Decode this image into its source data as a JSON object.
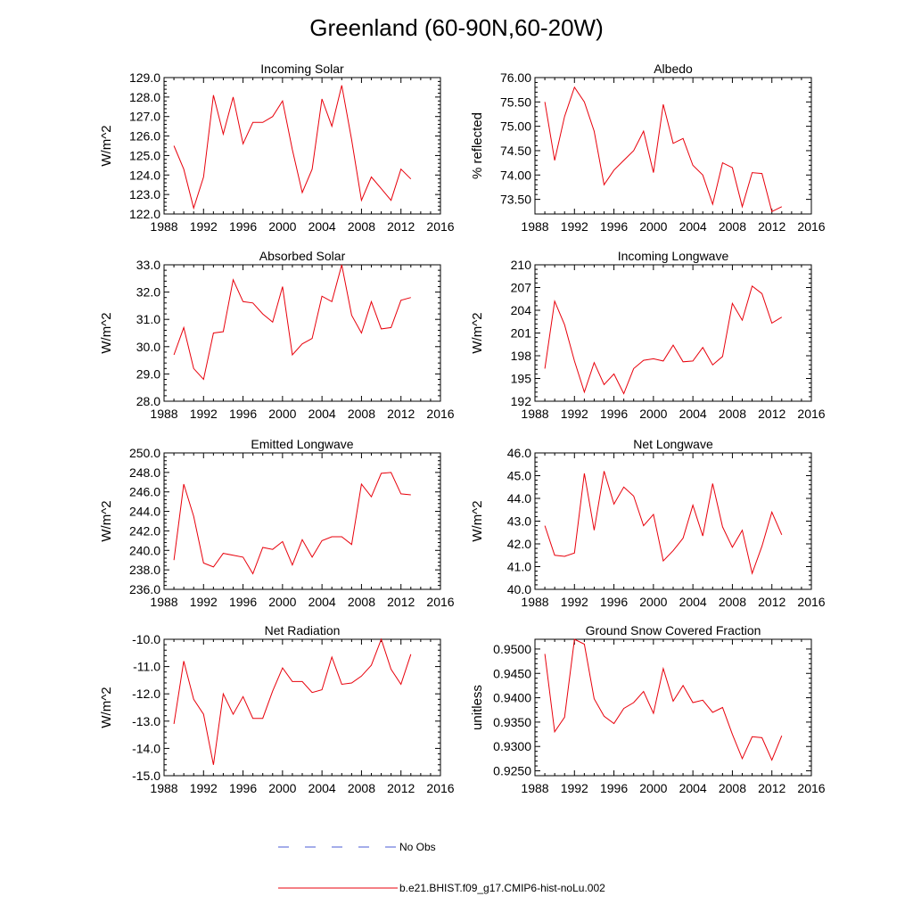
{
  "title": "Greenland (60-90N,60-20W)",
  "legend": {
    "items": [
      {
        "label": "No Obs",
        "color": "#4a5bd4",
        "dash": "12 18"
      },
      {
        "label": "b.e21.BHIST.f09_g17.CMIP6-hist-noLu.002",
        "color": "#e8000b",
        "dash": ""
      }
    ]
  },
  "chart_data": [
    {
      "type": "line",
      "title": "Incoming Solar",
      "ylabel": "W/m^2",
      "xlim": [
        1988,
        2016
      ],
      "xticks": [
        "1988",
        "1992",
        "1996",
        "2000",
        "2004",
        "2008",
        "2012",
        "2016"
      ],
      "ylim": [
        122.0,
        129.0
      ],
      "yticks": [
        "122.0",
        "123.0",
        "124.0",
        "125.0",
        "126.0",
        "127.0",
        "128.0",
        "129.0"
      ],
      "x": [
        1989,
        1990,
        1991,
        1992,
        1993,
        1994,
        1995,
        1996,
        1997,
        1998,
        1999,
        2000,
        2001,
        2002,
        2003,
        2004,
        2005,
        2006,
        2007,
        2008,
        2009,
        2010,
        2011,
        2012,
        2013
      ],
      "series": [
        {
          "color": "#e8000b",
          "values": [
            125.5,
            124.3,
            122.3,
            123.9,
            128.1,
            126.1,
            128.0,
            125.6,
            126.7,
            126.7,
            127.0,
            127.8,
            125.3,
            123.1,
            124.3,
            127.9,
            126.5,
            128.6,
            125.8,
            122.7,
            123.9,
            123.3,
            122.7,
            124.3,
            123.8
          ]
        }
      ]
    },
    {
      "type": "line",
      "title": "Albedo",
      "ylabel": "% reflected",
      "xlim": [
        1988,
        2016
      ],
      "xticks": [
        "1988",
        "1992",
        "1996",
        "2000",
        "2004",
        "2008",
        "2012",
        "2016"
      ],
      "ylim": [
        73.2,
        76.0
      ],
      "yticks": [
        "73.50",
        "74.00",
        "74.50",
        "75.00",
        "75.50",
        "76.00"
      ],
      "ytickvals": [
        73.5,
        74.0,
        74.5,
        75.0,
        75.5,
        76.0
      ],
      "x": [
        1989,
        1990,
        1991,
        1992,
        1993,
        1994,
        1995,
        1996,
        1997,
        1998,
        1999,
        2000,
        2001,
        2002,
        2003,
        2004,
        2005,
        2006,
        2007,
        2008,
        2009,
        2010,
        2011,
        2012,
        2013
      ],
      "series": [
        {
          "color": "#e8000b",
          "values": [
            75.5,
            74.3,
            75.2,
            75.8,
            75.5,
            74.9,
            73.8,
            74.1,
            74.3,
            74.5,
            74.9,
            74.05,
            75.45,
            74.65,
            74.75,
            74.2,
            74.0,
            73.4,
            74.25,
            74.15,
            73.35,
            74.05,
            74.03,
            73.25,
            73.35
          ]
        }
      ]
    },
    {
      "type": "line",
      "title": "Absorbed Solar",
      "ylabel": "W/m^2",
      "xlim": [
        1988,
        2016
      ],
      "xticks": [
        "1988",
        "1992",
        "1996",
        "2000",
        "2004",
        "2008",
        "2012",
        "2016"
      ],
      "ylim": [
        28.0,
        33.0
      ],
      "yticks": [
        "28.0",
        "29.0",
        "30.0",
        "31.0",
        "32.0",
        "33.0"
      ],
      "x": [
        1989,
        1990,
        1991,
        1992,
        1993,
        1994,
        1995,
        1996,
        1997,
        1998,
        1999,
        2000,
        2001,
        2002,
        2003,
        2004,
        2005,
        2006,
        2007,
        2008,
        2009,
        2010,
        2011,
        2012,
        2013
      ],
      "series": [
        {
          "color": "#e8000b",
          "values": [
            29.7,
            30.7,
            29.2,
            28.8,
            30.5,
            30.55,
            32.45,
            31.65,
            31.6,
            31.2,
            30.9,
            32.2,
            29.7,
            30.1,
            30.3,
            31.85,
            31.65,
            33.0,
            31.15,
            30.5,
            31.65,
            30.65,
            30.7,
            31.7,
            31.8
          ]
        }
      ]
    },
    {
      "type": "line",
      "title": "Incoming Longwave",
      "ylabel": "W/m^2",
      "xlim": [
        1988,
        2016
      ],
      "xticks": [
        "1988",
        "1992",
        "1996",
        "2000",
        "2004",
        "2008",
        "2012",
        "2016"
      ],
      "ylim": [
        192,
        210
      ],
      "yticks": [
        "192",
        "195",
        "198",
        "201",
        "204",
        "207",
        "210"
      ],
      "x": [
        1989,
        1990,
        1991,
        1992,
        1993,
        1994,
        1995,
        1996,
        1997,
        1998,
        1999,
        2000,
        2001,
        2002,
        2003,
        2004,
        2005,
        2006,
        2007,
        2008,
        2009,
        2010,
        2011,
        2012,
        2013
      ],
      "series": [
        {
          "color": "#e8000b",
          "values": [
            196.3,
            205.2,
            202.1,
            197.3,
            193.2,
            197.1,
            194.2,
            195.6,
            193.0,
            196.3,
            197.4,
            197.6,
            197.3,
            199.4,
            197.2,
            197.3,
            199.1,
            196.8,
            197.9,
            204.9,
            202.7,
            207.2,
            206.2,
            202.3,
            203.1
          ]
        }
      ]
    },
    {
      "type": "line",
      "title": "Emitted Longwave",
      "ylabel": "W/m^2",
      "xlim": [
        1988,
        2016
      ],
      "xticks": [
        "1988",
        "1992",
        "1996",
        "2000",
        "2004",
        "2008",
        "2012",
        "2016"
      ],
      "ylim": [
        236.0,
        250.0
      ],
      "yticks": [
        "236.0",
        "238.0",
        "240.0",
        "242.0",
        "244.0",
        "246.0",
        "248.0",
        "250.0"
      ],
      "x": [
        1989,
        1990,
        1991,
        1992,
        1993,
        1994,
        1995,
        1996,
        1997,
        1998,
        1999,
        2000,
        2001,
        2002,
        2003,
        2004,
        2005,
        2006,
        2007,
        2008,
        2009,
        2010,
        2011,
        2012,
        2013
      ],
      "series": [
        {
          "color": "#e8000b",
          "values": [
            239.0,
            246.8,
            243.5,
            238.7,
            238.3,
            239.7,
            239.5,
            239.3,
            237.6,
            240.3,
            240.1,
            240.9,
            238.5,
            241.1,
            239.3,
            241.0,
            241.4,
            241.4,
            240.6,
            246.8,
            245.5,
            247.9,
            248.0,
            245.8,
            245.7
          ]
        }
      ]
    },
    {
      "type": "line",
      "title": "Net Longwave",
      "ylabel": "W/m^2",
      "xlim": [
        1988,
        2016
      ],
      "xticks": [
        "1988",
        "1992",
        "1996",
        "2000",
        "2004",
        "2008",
        "2012",
        "2016"
      ],
      "ylim": [
        40.0,
        46.0
      ],
      "yticks": [
        "40.0",
        "41.0",
        "42.0",
        "43.0",
        "44.0",
        "45.0",
        "46.0"
      ],
      "x": [
        1989,
        1990,
        1991,
        1992,
        1993,
        1994,
        1995,
        1996,
        1997,
        1998,
        1999,
        2000,
        2001,
        2002,
        2003,
        2004,
        2005,
        2006,
        2007,
        2008,
        2009,
        2010,
        2011,
        2012,
        2013
      ],
      "series": [
        {
          "color": "#e8000b",
          "values": [
            42.8,
            41.5,
            41.45,
            41.6,
            45.1,
            42.6,
            45.2,
            43.75,
            44.5,
            44.1,
            42.8,
            43.3,
            41.25,
            41.7,
            42.25,
            43.7,
            42.35,
            44.65,
            42.75,
            41.85,
            42.6,
            40.7,
            41.9,
            43.4,
            42.4
          ]
        }
      ]
    },
    {
      "type": "line",
      "title": "Net Radiation",
      "ylabel": "W/m^2",
      "xlim": [
        1988,
        2016
      ],
      "xticks": [
        "1988",
        "1992",
        "1996",
        "2000",
        "2004",
        "2008",
        "2012",
        "2016"
      ],
      "ylim": [
        -15.0,
        -10.0
      ],
      "yticks": [
        "-15.0",
        "-14.0",
        "-13.0",
        "-12.0",
        "-11.0",
        "-10.0"
      ],
      "x": [
        1989,
        1990,
        1991,
        1992,
        1993,
        1994,
        1995,
        1996,
        1997,
        1998,
        1999,
        2000,
        2001,
        2002,
        2003,
        2004,
        2005,
        2006,
        2007,
        2008,
        2009,
        2010,
        2011,
        2012,
        2013
      ],
      "series": [
        {
          "color": "#e8000b",
          "values": [
            -13.1,
            -10.8,
            -12.2,
            -12.75,
            -14.6,
            -12.0,
            -12.75,
            -12.1,
            -12.9,
            -12.9,
            -11.9,
            -11.05,
            -11.55,
            -11.55,
            -11.95,
            -11.85,
            -10.65,
            -11.65,
            -11.6,
            -11.35,
            -10.95,
            -10.0,
            -11.1,
            -11.65,
            -10.55
          ]
        }
      ]
    },
    {
      "type": "line",
      "title": "Ground Snow Covered Fraction",
      "ylabel": "unitless",
      "xlim": [
        1988,
        2016
      ],
      "xticks": [
        "1988",
        "1992",
        "1996",
        "2000",
        "2004",
        "2008",
        "2012",
        "2016"
      ],
      "ylim": [
        0.924,
        0.952
      ],
      "yticks": [
        "0.9250",
        "0.9300",
        "0.9350",
        "0.9400",
        "0.9450",
        "0.9500"
      ],
      "ytickvals": [
        0.925,
        0.93,
        0.935,
        0.94,
        0.945,
        0.95
      ],
      "x": [
        1989,
        1990,
        1991,
        1992,
        1993,
        1994,
        1995,
        1996,
        1997,
        1998,
        1999,
        2000,
        2001,
        2002,
        2003,
        2004,
        2005,
        2006,
        2007,
        2008,
        2009,
        2010,
        2011,
        2012,
        2013
      ],
      "series": [
        {
          "color": "#e8000b",
          "values": [
            0.949,
            0.933,
            0.936,
            0.952,
            0.951,
            0.9398,
            0.9362,
            0.9347,
            0.9378,
            0.939,
            0.9413,
            0.9368,
            0.946,
            0.9393,
            0.9425,
            0.939,
            0.9395,
            0.937,
            0.938,
            0.9325,
            0.9275,
            0.932,
            0.9318,
            0.9272,
            0.9322
          ]
        }
      ]
    }
  ]
}
